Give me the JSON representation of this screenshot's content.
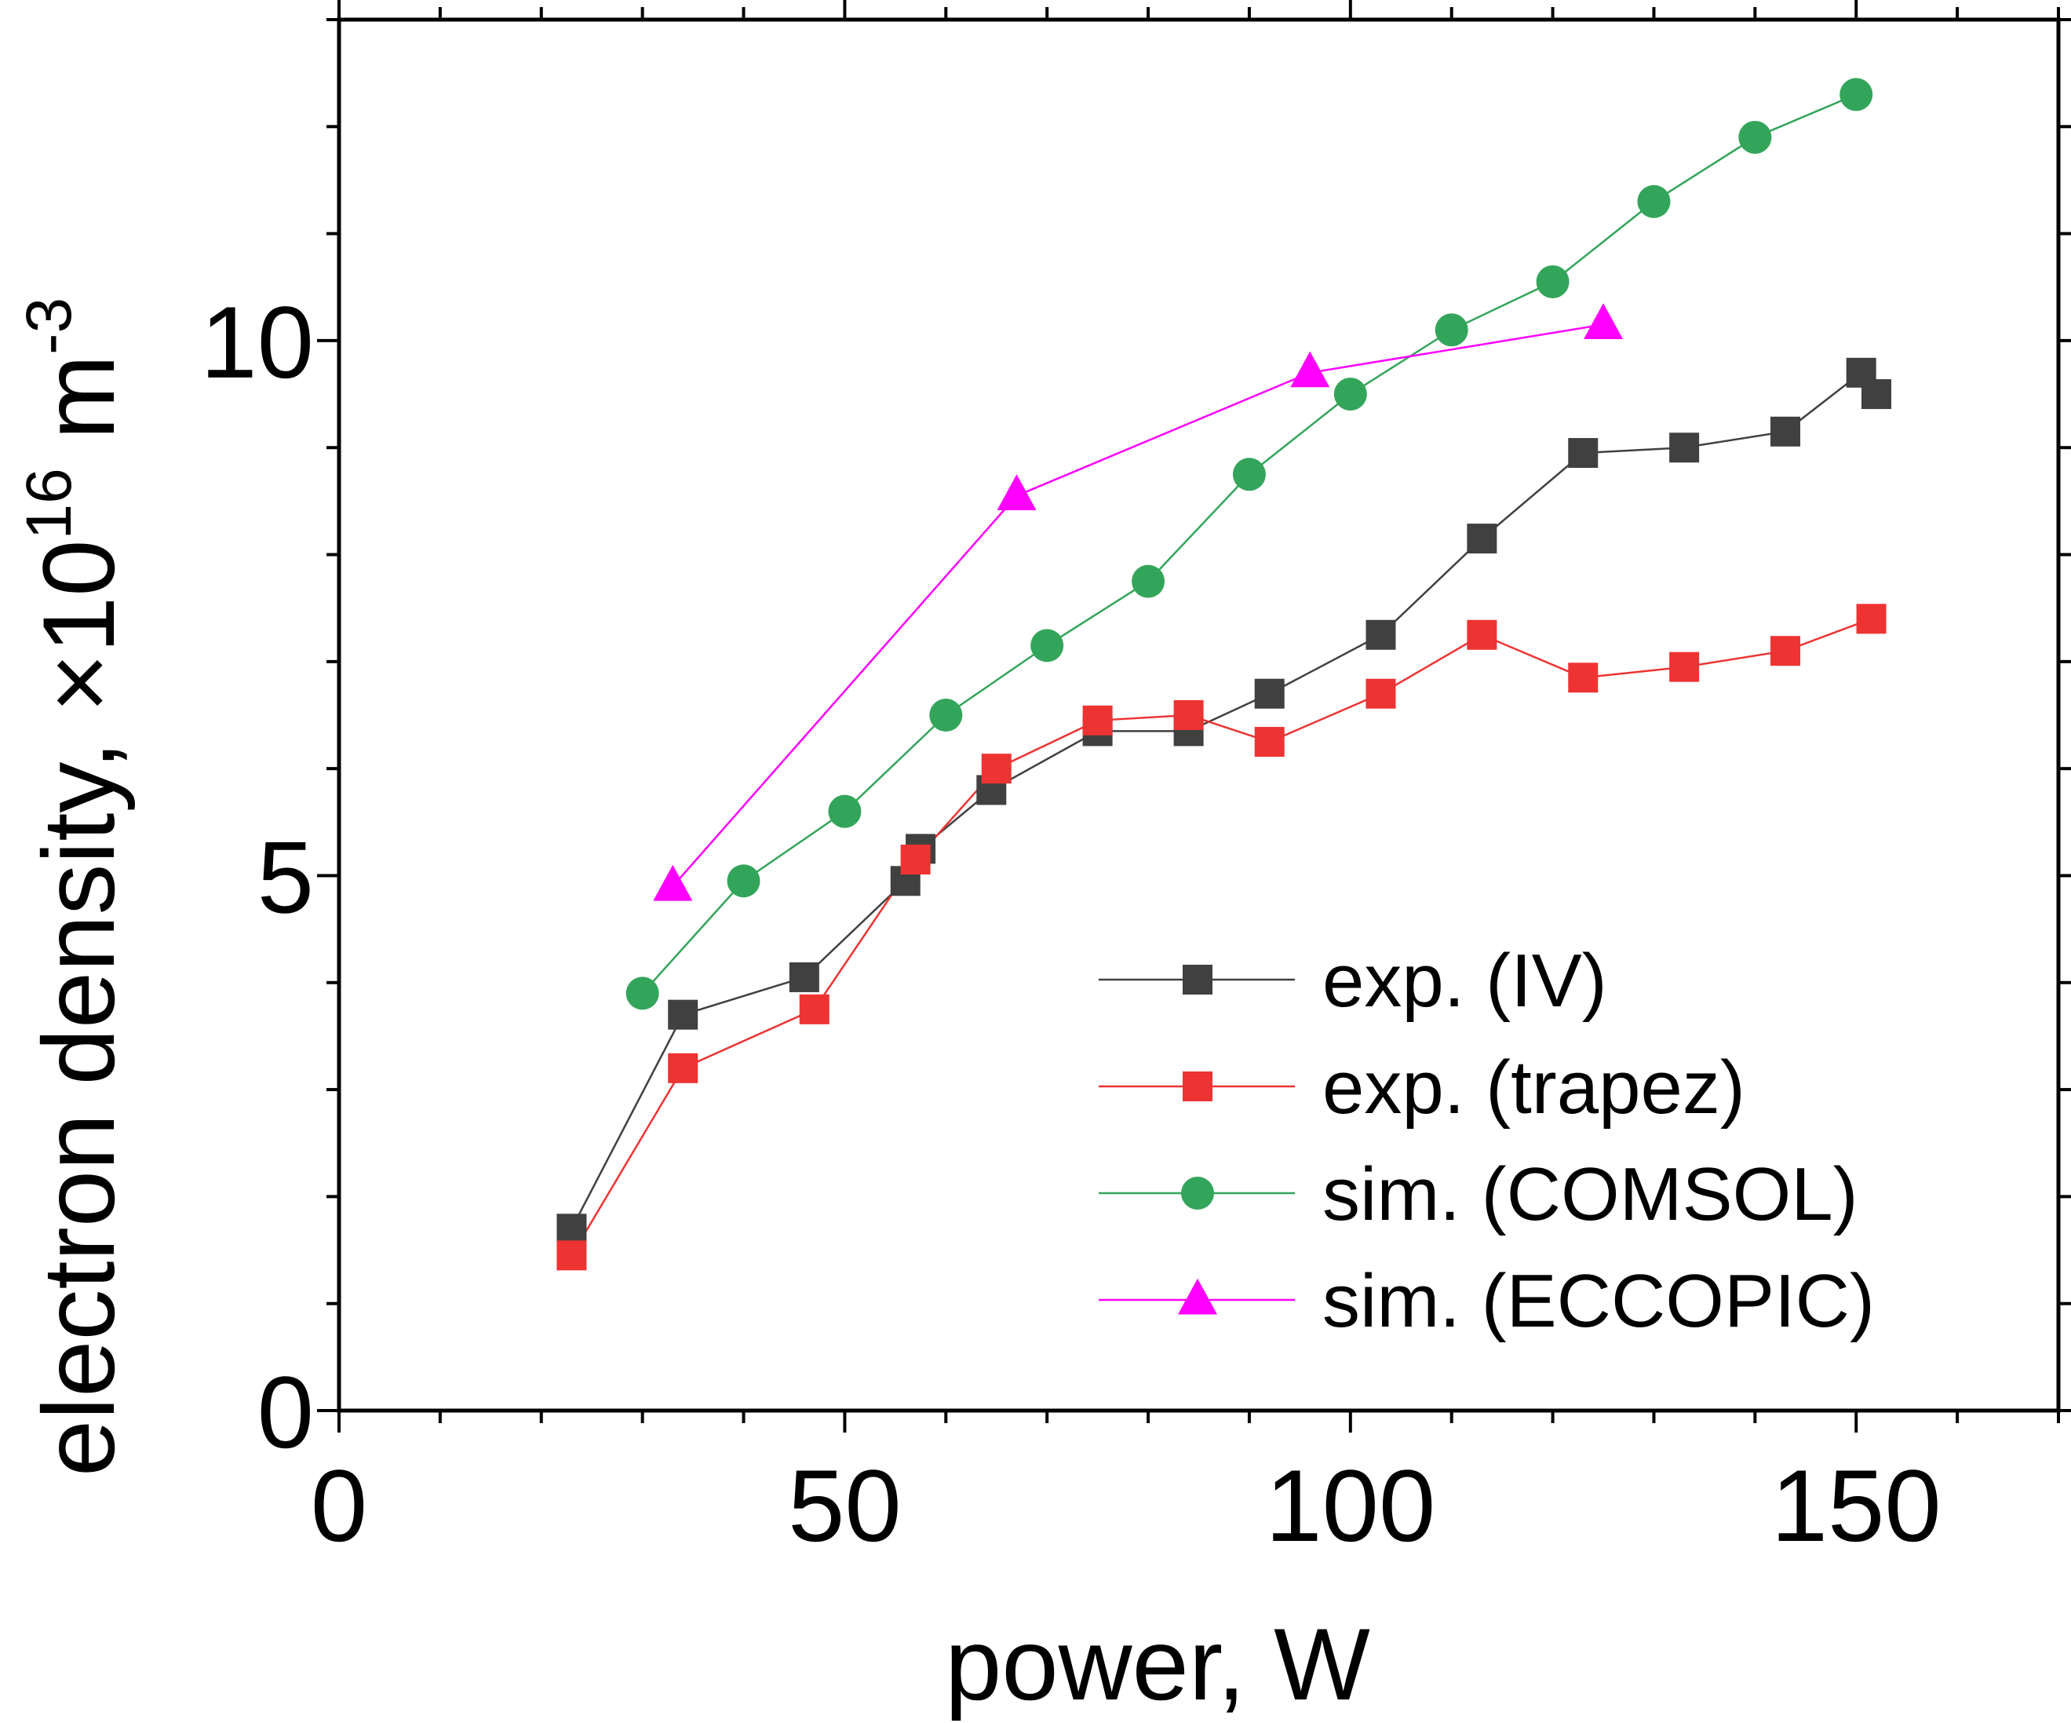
{
  "chart_data": {
    "type": "line",
    "title": "",
    "xlabel": "power, W",
    "ylabel": {
      "main": "electron density, ×10",
      "sup1": "16",
      "unit": " m",
      "sup2": "-3"
    },
    "xlim": [
      0,
      170
    ],
    "ylim": [
      0,
      13
    ],
    "xticks": [
      0,
      50,
      100,
      150
    ],
    "yticks": [
      0,
      5,
      10
    ],
    "xtick_labels": [
      "0",
      "50",
      "100",
      "150"
    ],
    "ytick_labels": [
      "0",
      "5",
      "10"
    ],
    "x_minor_step": 10,
    "y_minor_step": 1,
    "grid": false,
    "legend_position": "bottom-right",
    "series": [
      {
        "name": "exp. (IV)",
        "color": "#404040",
        "marker": "square",
        "x": [
          23,
          34,
          46,
          56,
          57.5,
          64.5,
          75,
          84,
          92,
          103,
          113,
          123,
          133,
          143,
          150.5,
          152
        ],
        "y": [
          1.7,
          3.7,
          4.05,
          4.95,
          5.25,
          5.8,
          6.35,
          6.35,
          6.7,
          7.25,
          8.15,
          8.95,
          9.0,
          9.15,
          9.7,
          9.5
        ]
      },
      {
        "name": "exp. (trapez)",
        "color": "#ee3333",
        "marker": "square",
        "x": [
          23,
          34,
          47,
          57,
          65,
          75,
          84,
          92,
          103,
          113,
          123,
          133,
          143,
          151.5
        ],
        "y": [
          1.45,
          3.2,
          3.75,
          5.15,
          6.0,
          6.45,
          6.5,
          6.25,
          6.7,
          7.25,
          6.85,
          6.95,
          7.1,
          7.4
        ]
      },
      {
        "name": "sim. (COMSOL)",
        "color": "#33a55a",
        "marker": "circle",
        "x": [
          30,
          40,
          50,
          60,
          70,
          80,
          90,
          100,
          110,
          120,
          130,
          140,
          150
        ],
        "y": [
          3.9,
          4.95,
          5.6,
          6.5,
          7.15,
          7.75,
          8.75,
          9.5,
          10.1,
          10.55,
          11.3,
          11.9,
          12.3
        ]
      },
      {
        "name": "sim. (ECCOPIC)",
        "color": "#ff00ff",
        "marker": "triangle",
        "x": [
          33,
          67,
          96,
          125
        ],
        "y": [
          4.9,
          8.55,
          9.7,
          10.15
        ]
      }
    ]
  }
}
